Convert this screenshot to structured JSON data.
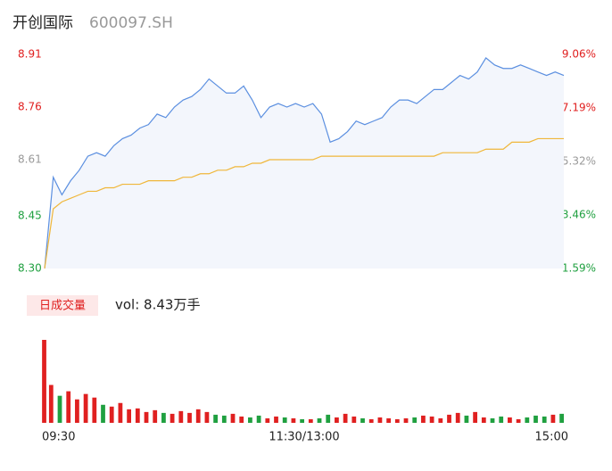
{
  "header": {
    "name": "开创国际",
    "code": "600097.SH"
  },
  "chart_data": {
    "type": "intraday",
    "xlim": [
      0,
      60
    ],
    "xticks": [
      {
        "value": 0,
        "label": "09:30"
      },
      {
        "value": 30,
        "label": "11:30/13:00"
      },
      {
        "value": 60,
        "label": "15:00"
      }
    ],
    "ylim": [
      8.3,
      8.91
    ],
    "yticks": [
      {
        "value": 8.3,
        "label": "8.30"
      },
      8.45,
      8.61,
      8.76,
      8.91
    ],
    "y2lim": [
      1.59,
      9.06
    ],
    "y2ticks": [
      {
        "value": 1.59,
        "label": "1.59%"
      },
      {
        "value": 3.46,
        "label": "3.46%"
      },
      {
        "value": 5.32,
        "label": "5.32%"
      },
      {
        "value": 7.19,
        "label": "7.19%"
      },
      {
        "value": 9.06,
        "label": "9.06%"
      }
    ],
    "up_color": "#e02020",
    "down_color": "#20a040",
    "mid_color": "#999999",
    "series": [
      {
        "name": "price",
        "color": "#5b8fe0",
        "area_color": "#f3f6fc",
        "values": [
          8.3,
          8.56,
          8.51,
          8.55,
          8.58,
          8.62,
          8.63,
          8.62,
          8.65,
          8.67,
          8.68,
          8.7,
          8.71,
          8.74,
          8.73,
          8.76,
          8.78,
          8.79,
          8.81,
          8.84,
          8.82,
          8.8,
          8.8,
          8.82,
          8.78,
          8.73,
          8.76,
          8.77,
          8.76,
          8.77,
          8.76,
          8.77,
          8.74,
          8.66,
          8.67,
          8.69,
          8.72,
          8.71,
          8.72,
          8.73,
          8.76,
          8.78,
          8.78,
          8.77,
          8.79,
          8.81,
          8.81,
          8.83,
          8.85,
          8.84,
          8.86,
          8.9,
          8.88,
          8.87,
          8.87,
          8.88,
          8.87,
          8.86,
          8.85,
          8.86,
          8.85
        ]
      },
      {
        "name": "average",
        "color": "#f0b73a",
        "values": [
          8.3,
          8.47,
          8.49,
          8.5,
          8.51,
          8.52,
          8.52,
          8.53,
          8.53,
          8.54,
          8.54,
          8.54,
          8.55,
          8.55,
          8.55,
          8.55,
          8.56,
          8.56,
          8.57,
          8.57,
          8.58,
          8.58,
          8.59,
          8.59,
          8.6,
          8.6,
          8.61,
          8.61,
          8.61,
          8.61,
          8.61,
          8.61,
          8.62,
          8.62,
          8.62,
          8.62,
          8.62,
          8.62,
          8.62,
          8.62,
          8.62,
          8.62,
          8.62,
          8.62,
          8.62,
          8.62,
          8.63,
          8.63,
          8.63,
          8.63,
          8.63,
          8.64,
          8.64,
          8.64,
          8.66,
          8.66,
          8.66,
          8.67,
          8.67,
          8.67,
          8.67
        ]
      }
    ],
    "volume": {
      "legend": "日成交量",
      "summary": "vol: 8.43万手",
      "values": [
        920,
        420,
        300,
        350,
        260,
        320,
        280,
        200,
        180,
        220,
        150,
        160,
        120,
        140,
        110,
        100,
        130,
        110,
        150,
        120,
        90,
        80,
        100,
        70,
        60,
        80,
        50,
        70,
        60,
        50,
        40,
        40,
        50,
        90,
        60,
        100,
        70,
        50,
        40,
        60,
        50,
        40,
        50,
        60,
        80,
        70,
        50,
        90,
        110,
        80,
        120,
        60,
        50,
        70,
        60,
        40,
        60,
        80,
        70,
        90,
        100
      ]
    }
  }
}
